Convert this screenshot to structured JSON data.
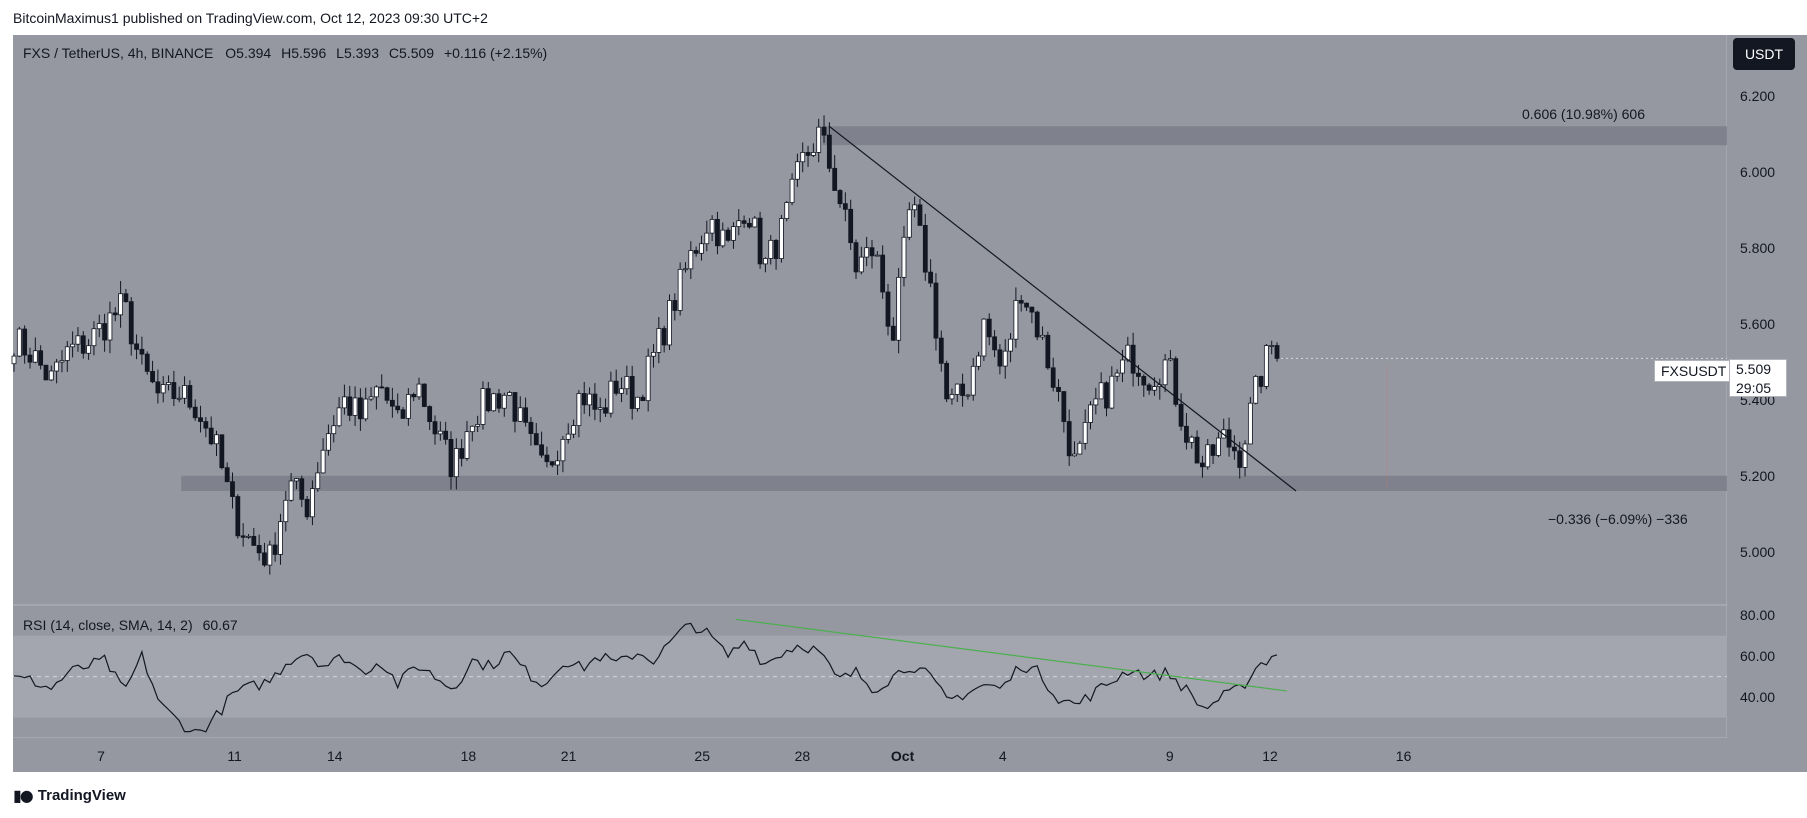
{
  "header": {
    "publisher": "BitcoinMaximus1",
    "published_text": "published on TradingView.com, Oct 12, 2023 09:30 UTC+2"
  },
  "footer": {
    "brand": "TradingView"
  },
  "legend": {
    "symbol": "FXS / TetherUS, 4h, BINANCE",
    "o_label": "O",
    "o": "5.394",
    "h_label": "H",
    "h": "5.596",
    "l_label": "L",
    "l": "5.393",
    "c_label": "C",
    "c": "5.509",
    "change": "+0.116 (+2.15%)"
  },
  "currency_button": "USDT",
  "price_tag": {
    "symbol": "FXSUSDT",
    "price": "5.509",
    "countdown": "29:05"
  },
  "annotations": {
    "target": "0.606 (10.98%) 606",
    "stop": "−0.336 (−6.09%) −336"
  },
  "rsi": {
    "label": "RSI (14, close, SMA, 14, 2)",
    "value": "60.67"
  },
  "colors": {
    "chart_bg": "#9598a1",
    "zone": "#787b86",
    "candle_up": "#ffffff",
    "candle_down": "#131722",
    "rsi_line": "#131722",
    "rsi_trend": "#4caf50",
    "price_trend": "#131722"
  },
  "chart_data": [
    {
      "type": "candlestick",
      "title": "FXS / TetherUS, 4h, BINANCE",
      "ylim": [
        4.86,
        6.36
      ],
      "y_ticks": [
        5.0,
        5.2,
        5.4,
        5.6,
        5.8,
        6.0,
        6.2
      ],
      "y_tick_labels": [
        "5.000",
        "5.200",
        "5.400",
        "5.600",
        "5.800",
        "6.000",
        "6.200"
      ],
      "x_ticks": [
        "7",
        "11",
        "14",
        "18",
        "21",
        "25",
        "28",
        "Oct",
        "4",
        "9",
        "12",
        "16"
      ],
      "anchors": [
        5.56,
        5.52,
        5.45,
        5.53,
        5.55,
        5.6,
        5.65,
        5.48,
        5.4,
        5.42,
        5.38,
        5.28,
        5.1,
        5.02,
        4.98,
        5.18,
        5.12,
        5.3,
        5.4,
        5.35,
        5.44,
        5.33,
        5.45,
        5.32,
        5.22,
        5.36,
        5.4,
        5.42,
        5.3,
        5.2,
        5.32,
        5.42,
        5.36,
        5.45,
        5.4,
        5.52,
        5.65,
        5.78,
        5.88,
        5.8,
        5.92,
        5.75,
        5.85,
        6.02,
        6.1,
        5.95,
        5.75,
        5.8,
        5.56,
        5.92,
        5.72,
        5.38,
        5.42,
        5.6,
        5.47,
        5.7,
        5.58,
        5.42,
        5.22,
        5.38,
        5.44,
        5.52,
        5.46,
        5.5,
        5.32,
        5.22,
        5.3,
        5.26,
        5.45,
        5.58
      ],
      "zones": [
        {
          "y_from": 6.07,
          "y_to": 6.12,
          "x_start_day": 28.6
        },
        {
          "y_from": 5.16,
          "y_to": 5.2,
          "x_start_day": 9.4
        }
      ],
      "trendline": {
        "from": [
          "Sep 28 20:00",
          6.12
        ],
        "to": [
          "Oct 12 16:00",
          5.16
        ]
      },
      "last_close": 5.509
    },
    {
      "type": "line",
      "title": "RSI (14, close, SMA, 14, 2)",
      "ylim": [
        20,
        85
      ],
      "y_ticks": [
        40,
        60,
        80
      ],
      "y_tick_labels": [
        "40.00",
        "60.00",
        "80.00"
      ],
      "band": [
        30,
        70
      ],
      "midline": 50,
      "anchors": [
        49,
        48,
        44,
        52,
        55,
        58,
        42,
        60,
        36,
        28,
        22,
        30,
        42,
        45,
        48,
        58,
        62,
        55,
        60,
        52,
        58,
        46,
        56,
        50,
        44,
        58,
        55,
        62,
        52,
        46,
        58,
        54,
        60,
        56,
        62,
        58,
        68,
        76,
        70,
        60,
        68,
        56,
        62,
        66,
        62,
        48,
        52,
        44,
        50,
        56,
        50,
        38,
        42,
        46,
        44,
        56,
        52,
        40,
        36,
        42,
        48,
        54,
        50,
        52,
        44,
        34,
        40,
        44,
        56,
        60.67
      ],
      "trendline": {
        "from": [
          "Sep 26",
          78
        ],
        "to": [
          "Oct 12 12:00",
          43
        ]
      },
      "last_value": 60.67
    }
  ]
}
